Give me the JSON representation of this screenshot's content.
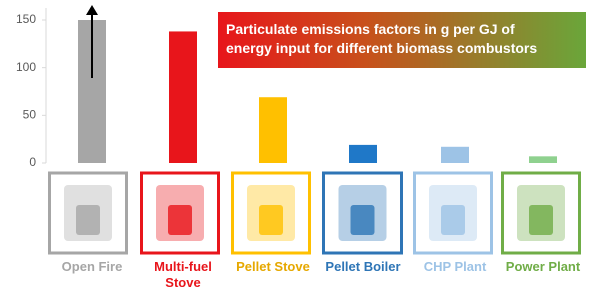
{
  "chart_data": {
    "type": "bar",
    "title_lines": [
      "Particulate emissions factors in g per GJ of",
      "energy input for different biomass combustors"
    ],
    "categories": [
      "Open Fire",
      "Multi-fuel Stove",
      "Pellet Stove",
      "Pellet Boiler",
      "CHP Plant",
      "Power Plant"
    ],
    "values": [
      150,
      138,
      69,
      19,
      17,
      7
    ],
    "colors": [
      "#a6a6a6",
      "#e8151b",
      "#ffc000",
      "#1f78c8",
      "#9dc3e6",
      "#8fd18f"
    ],
    "label_colors": [
      "#a6a6a6",
      "#e8151b",
      "#e6a800",
      "#2e75b6",
      "#9dc3e6",
      "#70ad47"
    ],
    "frame_colors": [
      "#a6a6a6",
      "#e8151b",
      "#ffc000",
      "#2e75b6",
      "#9dc3e6",
      "#70ad47"
    ],
    "ylim": [
      0,
      150
    ],
    "yticks": [
      0,
      50,
      100,
      150
    ],
    "grid": false
  }
}
